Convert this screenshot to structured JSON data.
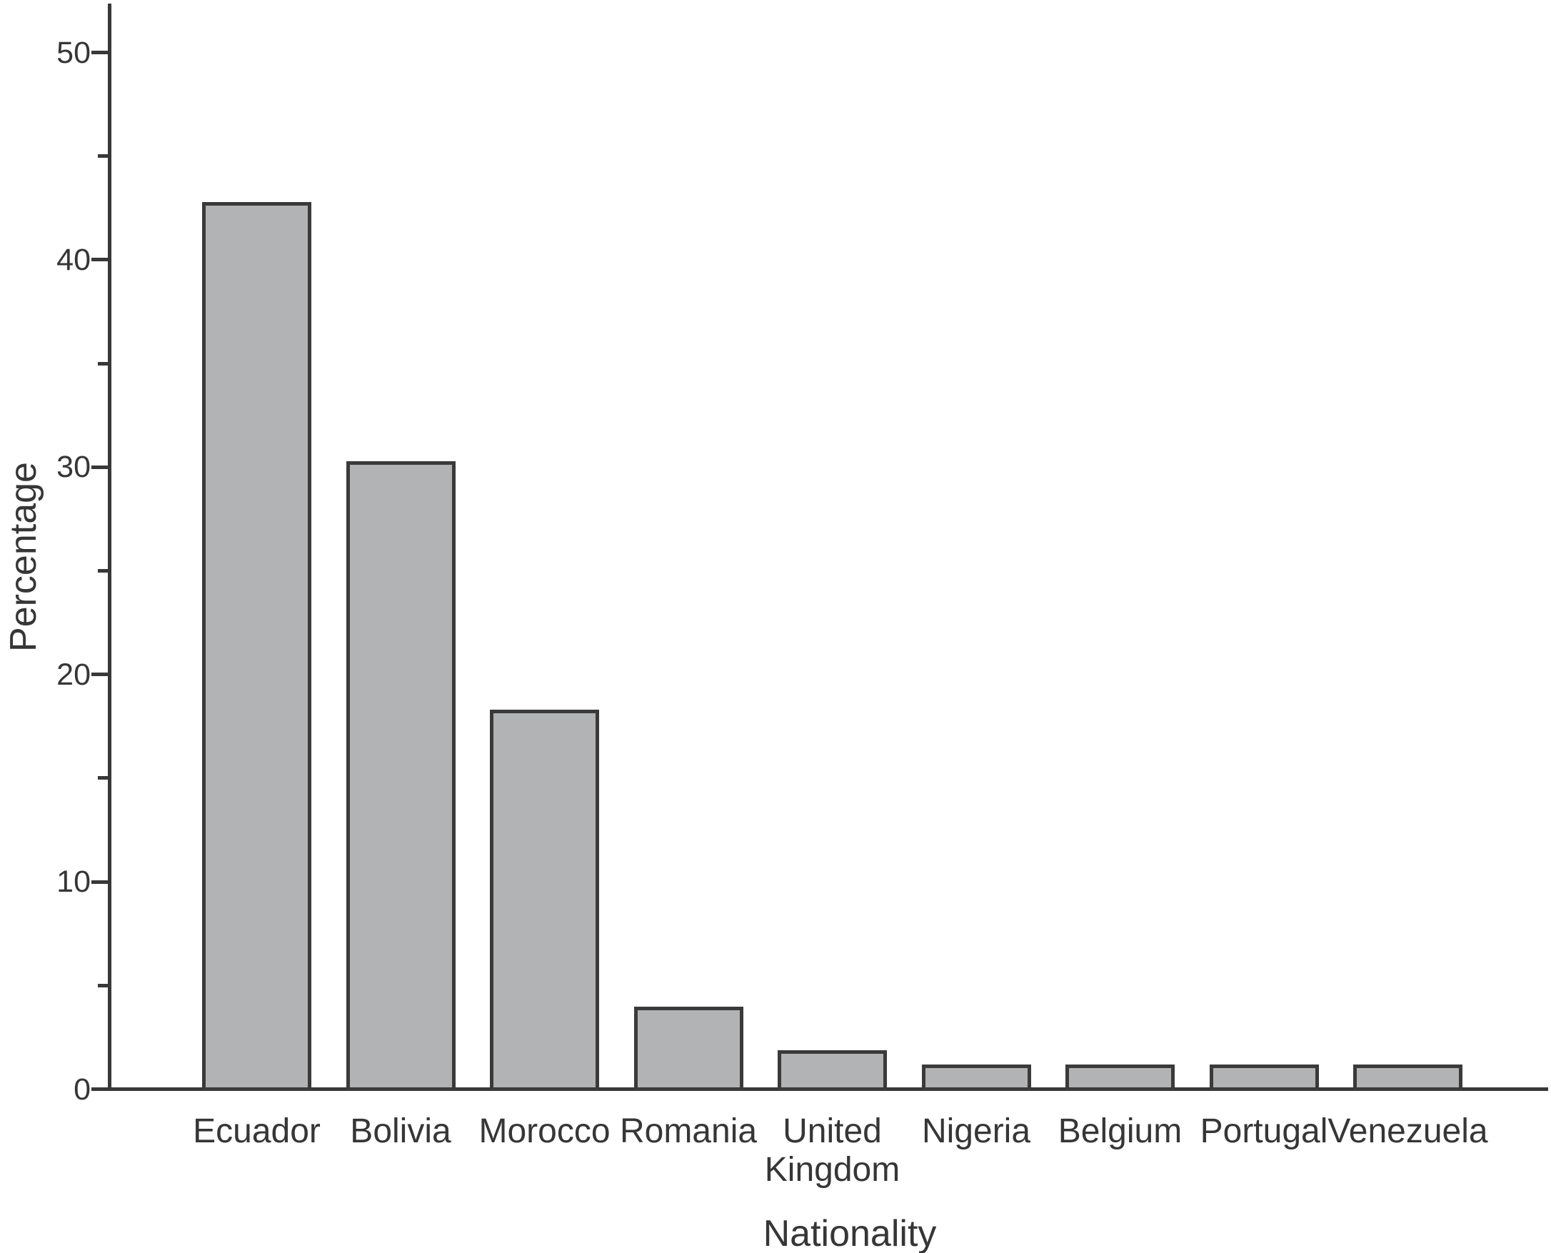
{
  "figure": {
    "background_color": "#ffffff",
    "bar_fill_color": "#b1b3b5",
    "bar_border_color": "#3a3a3a",
    "axis_color": "#383838",
    "text_color": "#363636"
  },
  "chart_data": {
    "type": "bar",
    "title": "",
    "xlabel": "Nationality",
    "ylabel": "Percentage",
    "categories": [
      "Ecuador",
      "Bolivia",
      "Morocco",
      "Romania",
      "United Kingdom",
      "Nigeria",
      "Belgium",
      "Portugal",
      "Venezuela"
    ],
    "values": [
      42.7,
      30.2,
      18.2,
      3.9,
      1.8,
      1.1,
      1.1,
      1.1,
      1.1
    ],
    "ylim": [
      0,
      52
    ],
    "yticks_major": [
      50,
      40,
      30,
      20,
      10,
      0
    ],
    "yticks_minor": [
      45,
      35,
      25,
      15,
      5
    ],
    "grid": false,
    "legend": "none",
    "bar_orientation": "vertical"
  }
}
